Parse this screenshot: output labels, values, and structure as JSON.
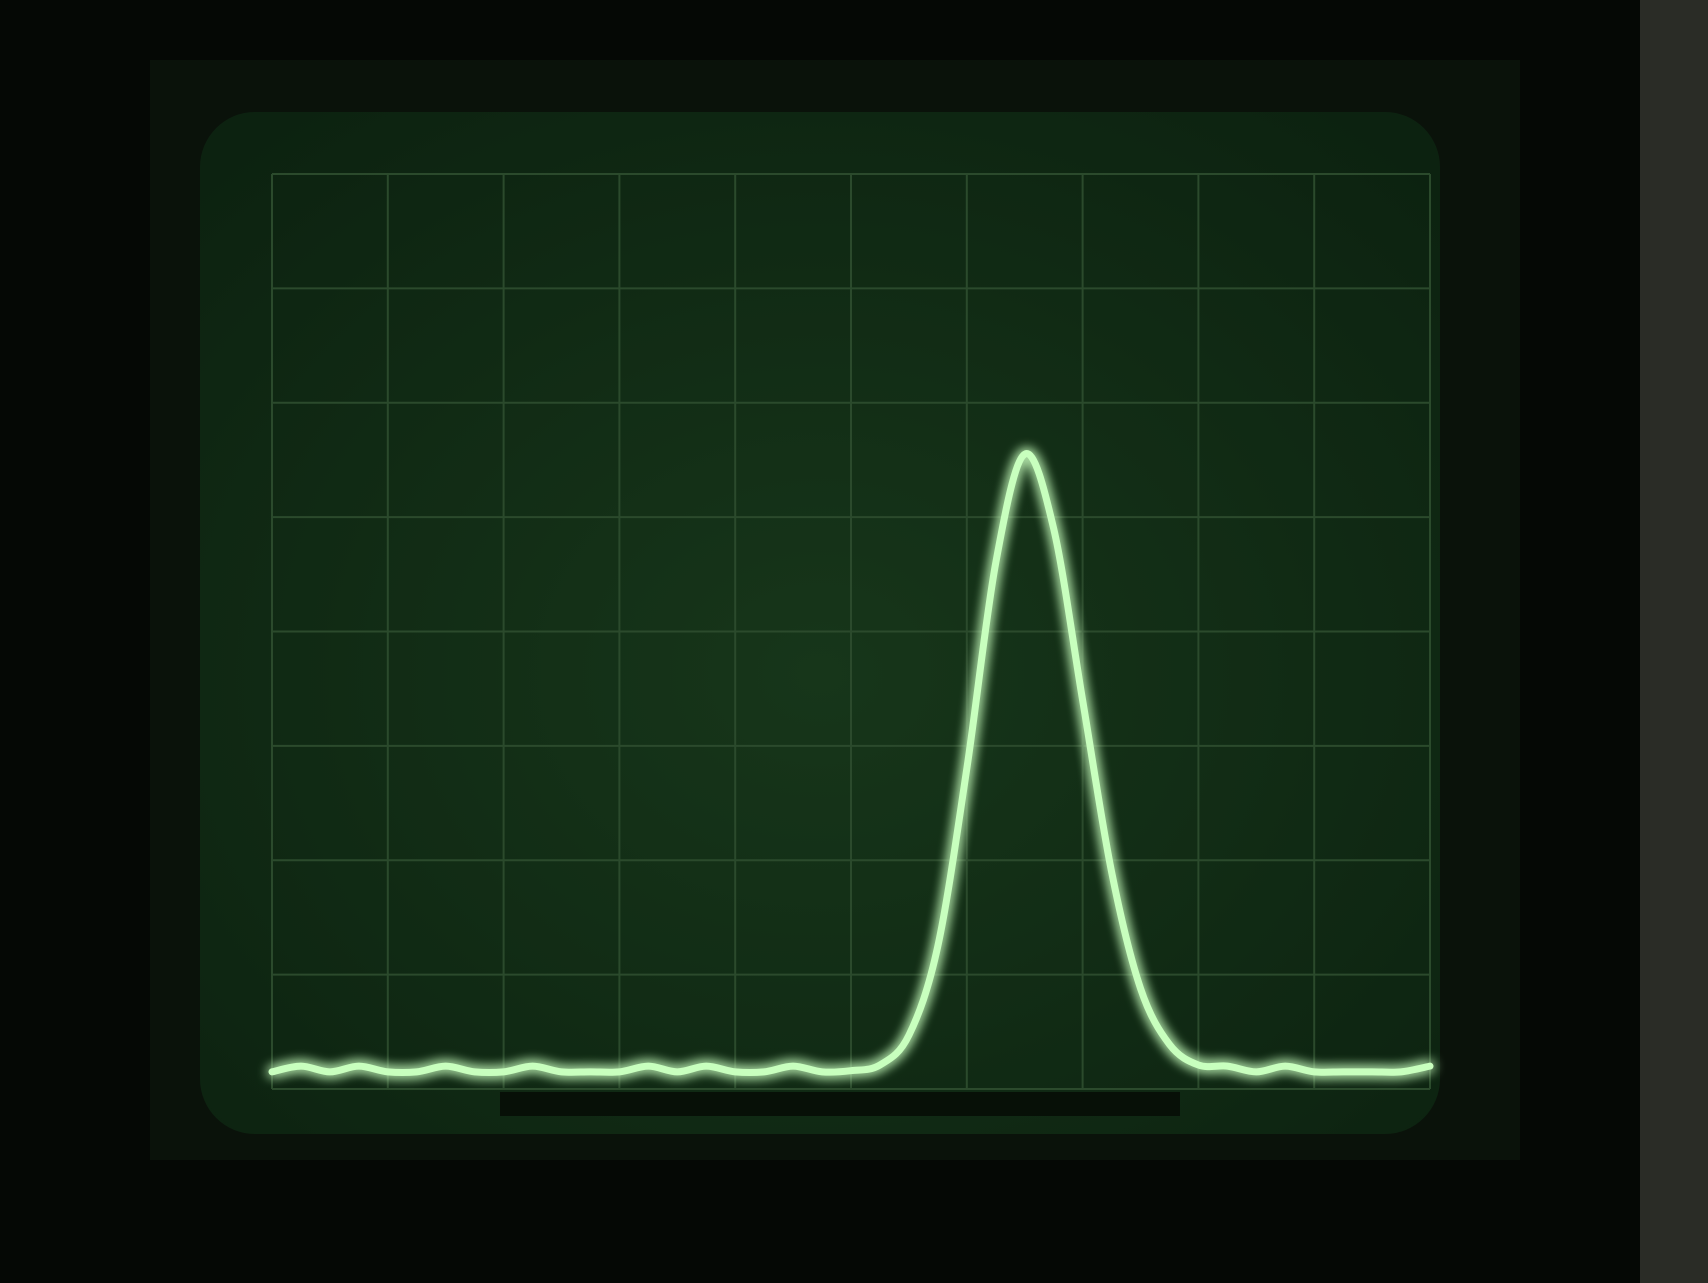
{
  "chart_data": {
    "type": "line",
    "x": [
      0,
      0.25,
      0.5,
      0.75,
      1,
      1.25,
      1.5,
      1.75,
      2,
      2.25,
      2.5,
      2.75,
      3,
      3.25,
      3.5,
      3.75,
      4,
      4.25,
      4.5,
      4.75,
      5,
      5.25,
      5.5,
      5.75,
      6,
      6.25,
      6.5,
      6.75,
      7,
      7.25,
      7.5,
      7.75,
      8,
      8.25,
      8.5,
      8.75,
      9,
      9.25,
      9.5,
      9.75,
      10
    ],
    "series": [
      {
        "color": "#c8ffbe",
        "values": [
          0.15,
          0.2,
          0.15,
          0.2,
          0.15,
          0.15,
          0.2,
          0.15,
          0.15,
          0.2,
          0.15,
          0.15,
          0.15,
          0.2,
          0.15,
          0.2,
          0.15,
          0.15,
          0.2,
          0.15,
          0.16,
          0.21,
          0.47,
          1.25,
          2.8,
          4.6,
          5.55,
          4.9,
          3.4,
          1.9,
          0.88,
          0.39,
          0.21,
          0.2,
          0.15,
          0.2,
          0.15,
          0.15,
          0.15,
          0.15,
          0.2
        ]
      }
    ],
    "xlim": [
      0,
      10
    ],
    "ylim": [
      0,
      8
    ],
    "xticks": [
      0,
      1,
      2,
      3,
      4,
      5,
      6,
      7,
      8,
      9,
      10
    ],
    "yticks": [
      0,
      1,
      2,
      3,
      4,
      5,
      6,
      7,
      8
    ],
    "grid": true
  }
}
